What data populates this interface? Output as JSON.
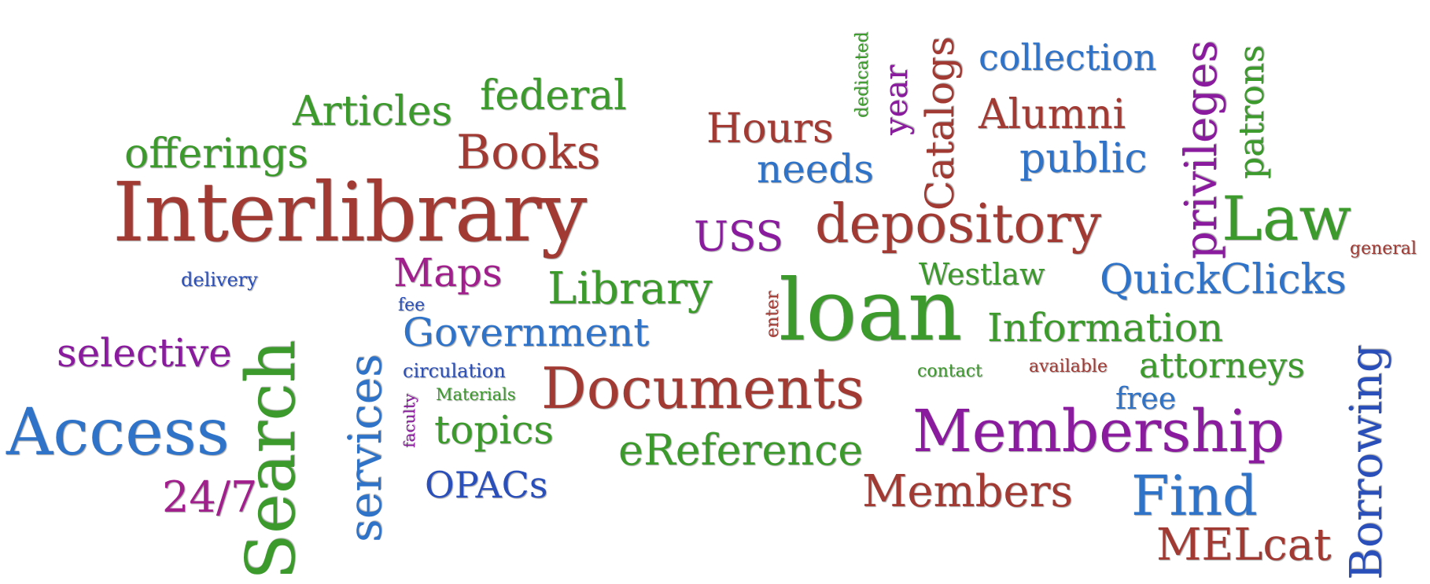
{
  "colors": {
    "brick": "#a23a34",
    "green": "#3b9a2b",
    "blue": "#2f73c9",
    "purple": "#8a1a9e",
    "navy": "#2a4fba",
    "magenta": "#a11f8c"
  },
  "words": {
    "interlibrary": "Interlibrary",
    "search": "Search",
    "loan": "loan",
    "membership": "Membership",
    "access": "Access",
    "documents": "Documents",
    "depository": "depository",
    "services": "services",
    "books": "Books",
    "library": "Library",
    "government": "Government",
    "information": "Information",
    "quickclicks": "QuickClicks",
    "law": "Law",
    "privileges": "privileges",
    "borrowing": "Borrowing",
    "catalogs": "Catalogs",
    "find": "Find",
    "ereference": "eReference",
    "members": "Members",
    "melcat": "MELcat",
    "articles": "Articles",
    "federal": "federal",
    "offerings": "offerings",
    "hours": "Hours",
    "needs": "needs",
    "alumni": "Alumni",
    "public": "public",
    "collection": "collection",
    "patrons": "patrons",
    "year": "year",
    "dedicated": "dedicated",
    "uss": "USS",
    "maps": "Maps",
    "westlaw": "Westlaw",
    "selective": "selective",
    "topics": "topics",
    "opacs": "OPACs",
    "twentyfourseven": "24/7",
    "attorneys": "attorneys",
    "free": "free",
    "general": "general",
    "delivery": "delivery",
    "fee": "fee",
    "circulation": "circulation",
    "materials": "Materials",
    "faculty": "faculty",
    "enter": "enter",
    "contact": "contact",
    "available": "available"
  }
}
